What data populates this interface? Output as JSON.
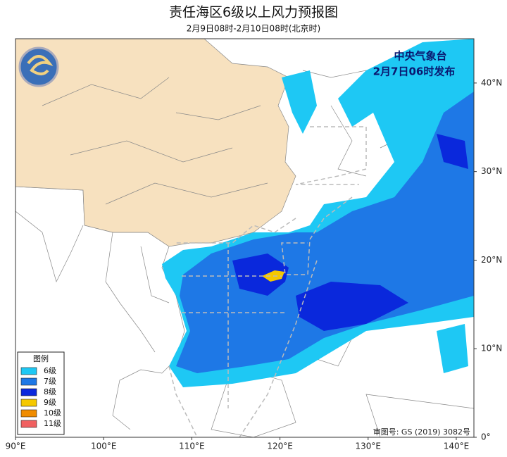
{
  "title": "责任海区6级以上风力预报图",
  "subtitle": "2月9日08时-2月10日08时(北京时)",
  "issuer": "中央气象台",
  "issued": "2月7日06时发布",
  "map": {
    "xlim": [
      90,
      142
    ],
    "ylim": [
      0,
      45
    ],
    "xticks": [
      {
        "value": 90,
        "label": "90°E"
      },
      {
        "value": 100,
        "label": "100°E"
      },
      {
        "value": 110,
        "label": "110°E"
      },
      {
        "value": 120,
        "label": "120°E"
      },
      {
        "value": 130,
        "label": "130°E"
      },
      {
        "value": 140,
        "label": "140°E"
      }
    ],
    "yticks": [
      {
        "value": 0,
        "label": "0°"
      },
      {
        "value": 10,
        "label": "10°N"
      },
      {
        "value": 20,
        "label": "20°N"
      },
      {
        "value": 30,
        "label": "30°N"
      },
      {
        "value": 40,
        "label": "40°N"
      }
    ]
  },
  "legend": {
    "title": "图例",
    "items": [
      {
        "name": "6级",
        "color": "#1ec8f4"
      },
      {
        "name": "7级",
        "color": "#1e78e6"
      },
      {
        "name": "8级",
        "color": "#0a28dc"
      },
      {
        "name": "9级",
        "color": "#f5c800"
      },
      {
        "name": "10级",
        "color": "#f08c00"
      },
      {
        "name": "11级",
        "color": "#f06060"
      }
    ]
  },
  "approval": "审图号: GS (2019) 3082号"
}
